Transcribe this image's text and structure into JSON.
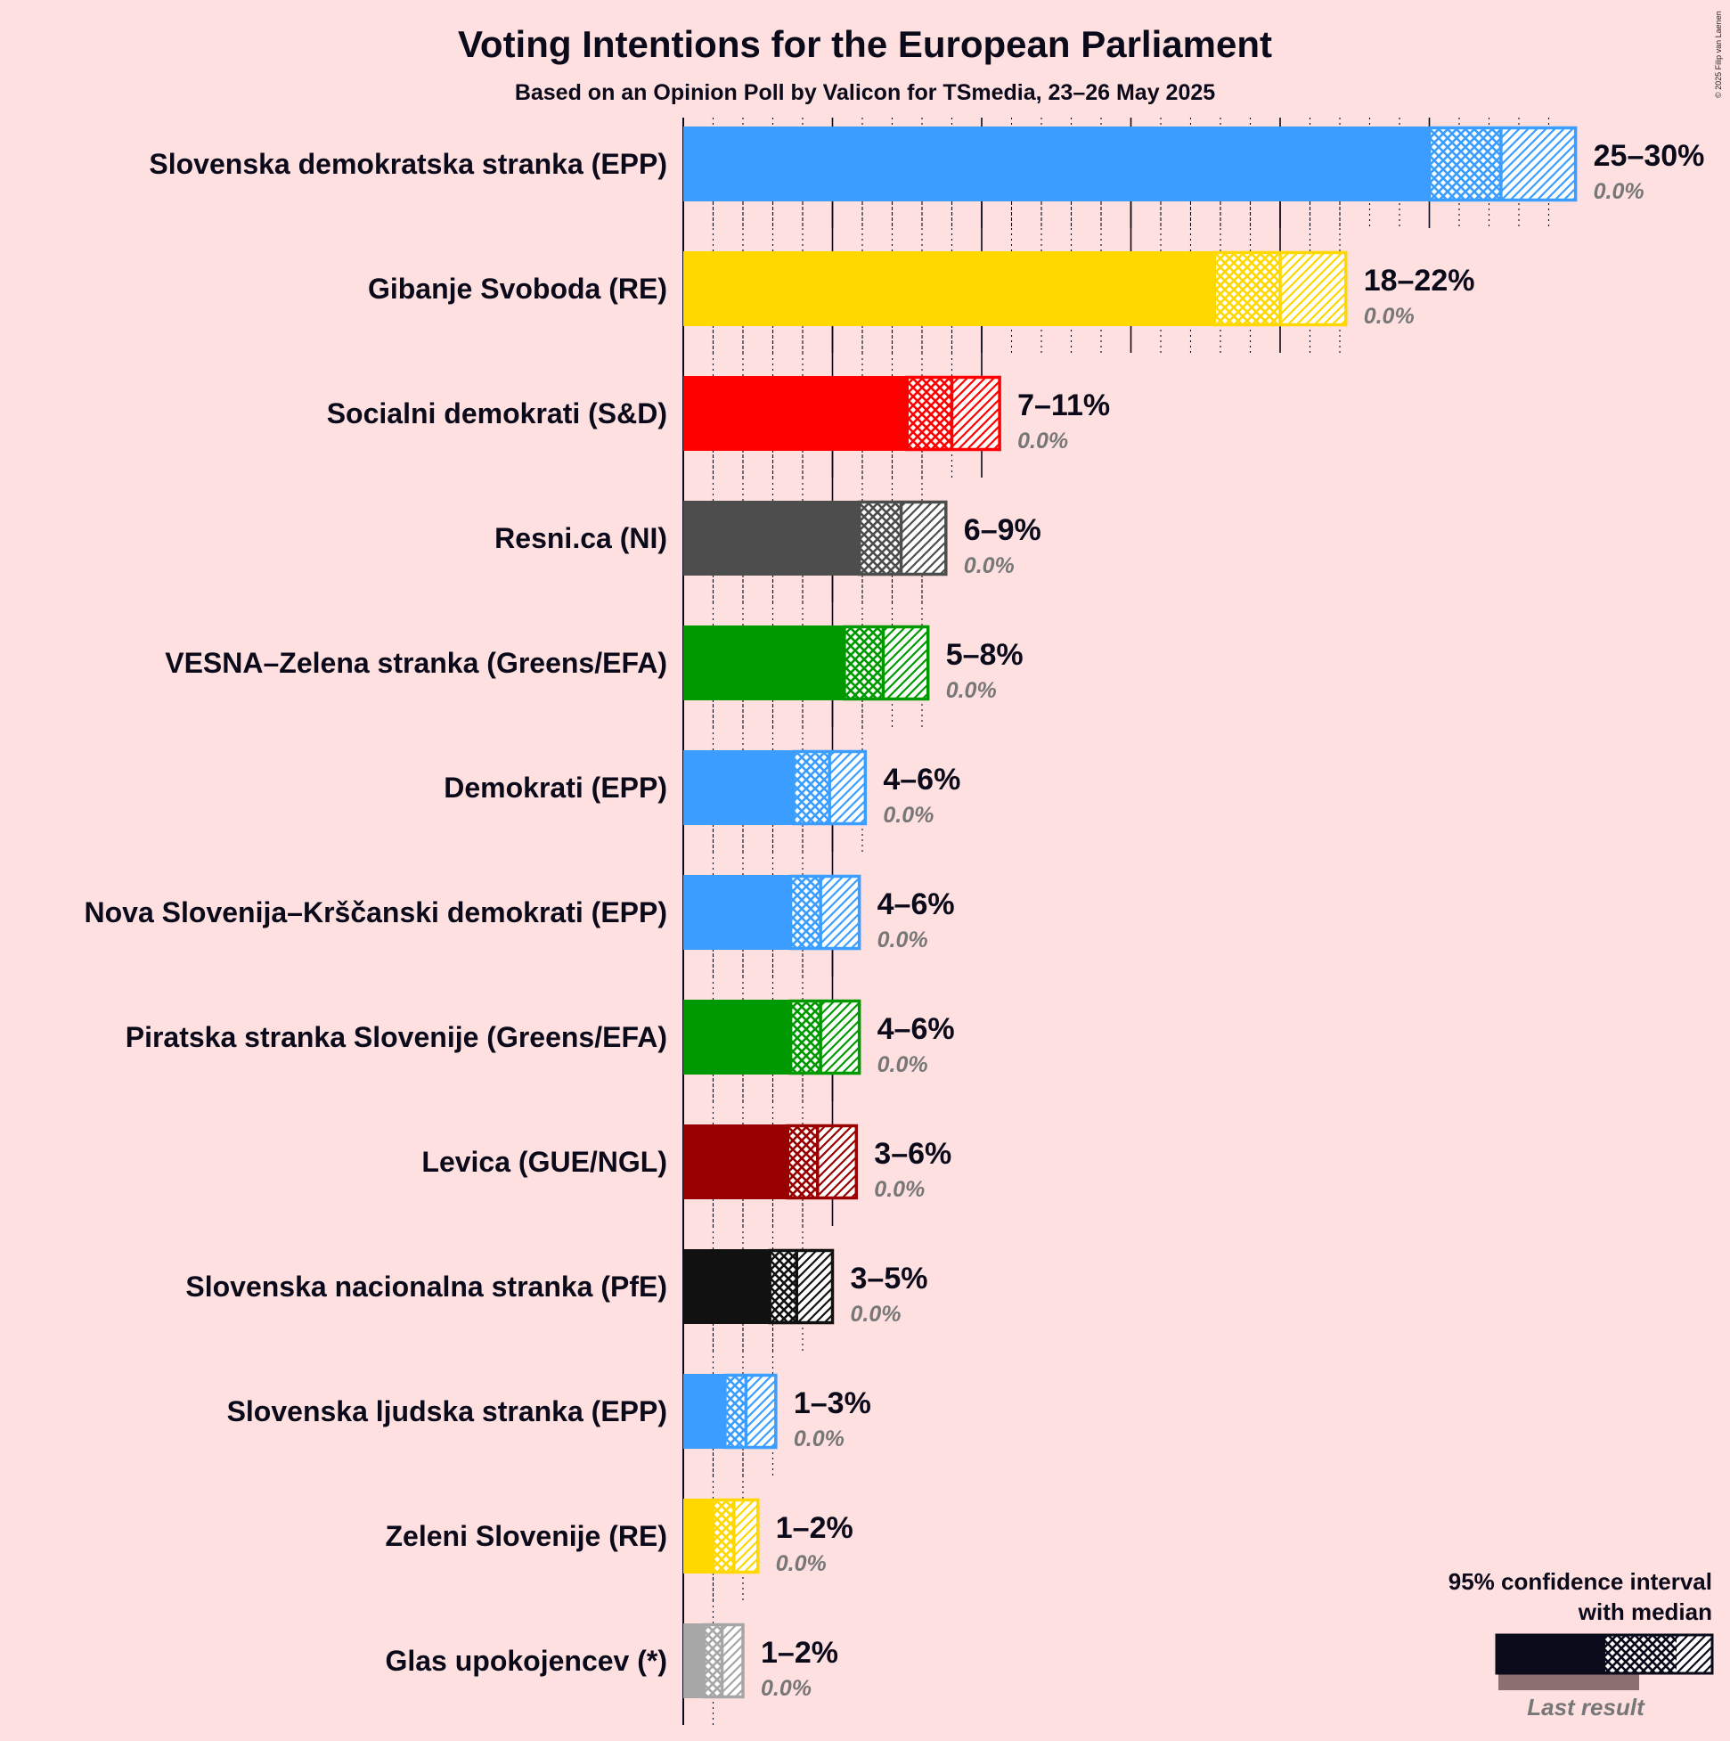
{
  "title": "Voting Intentions for the European Parliament",
  "subtitle": "Based on an Opinion Poll by Valicon for TSmedia, 23–26 May 2025",
  "copyright": "© 2025 Filip van Laenen",
  "legend": {
    "title_line1": "95% confidence interval",
    "title_line2": "with median",
    "last_result": "Last result",
    "color": "#0a0a1a"
  },
  "chart_data": {
    "type": "bar",
    "orientation": "horizontal",
    "title": "Voting Intentions for the European Parliament",
    "subtitle": "Based on an Opinion Poll by Valicon for TSmedia, 23–26 May 2025",
    "xlim": [
      0,
      30
    ],
    "grid": true,
    "legend_position": "bottom-right",
    "categories": [
      "Slovenska demokratska stranka (EPP)",
      "Gibanje Svoboda (RE)",
      "Socialni demokrati (S&D)",
      "Resni.ca (NI)",
      "VESNA–Zelena stranka (Greens/EFA)",
      "Demokrati (EPP)",
      "Nova Slovenija–Krščanski demokrati (EPP)",
      "Piratska stranka Slovenije (Greens/EFA)",
      "Levica (GUE/NGL)",
      "Slovenska nacionalna stranka (PfE)",
      "Slovenska ljudska stranka (EPP)",
      "Zeleni Slovenije (RE)",
      "Glas upokojencev (*)"
    ],
    "parties": [
      {
        "name": "Slovenska demokratska stranka (EPP)",
        "color": "#3A9DFF",
        "low": 25.0,
        "median": 27.4,
        "high": 29.9,
        "range_label": "25–30%",
        "last_result_label": "0.0%",
        "tick_max": 29
      },
      {
        "name": "Gibanje Svoboda (RE)",
        "color": "#FFD800",
        "low": 17.8,
        "median": 20.0,
        "high": 22.2,
        "range_label": "18–22%",
        "last_result_label": "0.0%",
        "tick_max": 22
      },
      {
        "name": "Socialni demokrati (S&D)",
        "color": "#FF0000",
        "low": 7.5,
        "median": 9.0,
        "high": 10.6,
        "range_label": "7–11%",
        "last_result_label": "0.0%",
        "tick_max": 10
      },
      {
        "name": "Resni.ca (NI)",
        "color": "#4D4D4D",
        "low": 5.9,
        "median": 7.3,
        "high": 8.8,
        "range_label": "6–9%",
        "last_result_label": "0.0%",
        "tick_max": 8
      },
      {
        "name": "VESNA–Zelena stranka (Greens/EFA)",
        "color": "#009900",
        "low": 5.4,
        "median": 6.7,
        "high": 8.2,
        "range_label": "5–8%",
        "last_result_label": "0.0%",
        "tick_max": 8
      },
      {
        "name": "Demokrati (EPP)",
        "color": "#3A9DFF",
        "low": 3.7,
        "median": 4.9,
        "high": 6.1,
        "range_label": "4–6%",
        "last_result_label": "0.0%",
        "tick_max": 6
      },
      {
        "name": "Nova Slovenija–Krščanski demokrati (EPP)",
        "color": "#3A9DFF",
        "low": 3.6,
        "median": 4.6,
        "high": 5.9,
        "range_label": "4–6%",
        "last_result_label": "0.0%",
        "tick_max": 5
      },
      {
        "name": "Piratska stranka Slovenije (Greens/EFA)",
        "color": "#009900",
        "low": 3.6,
        "median": 4.6,
        "high": 5.9,
        "range_label": "4–6%",
        "last_result_label": "0.0%",
        "tick_max": 5
      },
      {
        "name": "Levica (GUE/NGL)",
        "color": "#990000",
        "low": 3.5,
        "median": 4.5,
        "high": 5.8,
        "range_label": "3–6%",
        "last_result_label": "0.0%",
        "tick_max": 5
      },
      {
        "name": "Slovenska nacionalna stranka (PfE)",
        "color": "#111111",
        "low": 2.9,
        "median": 3.8,
        "high": 5.0,
        "range_label": "3–5%",
        "last_result_label": "0.0%",
        "tick_max": 4
      },
      {
        "name": "Slovenska ljudska stranka (EPP)",
        "color": "#3A9DFF",
        "low": 1.4,
        "median": 2.1,
        "high": 3.1,
        "range_label": "1–3%",
        "last_result_label": "0.0%",
        "tick_max": 3
      },
      {
        "name": "Zeleni Slovenije (RE)",
        "color": "#FFD800",
        "low": 1.0,
        "median": 1.7,
        "high": 2.5,
        "range_label": "1–2%",
        "last_result_label": "0.0%",
        "tick_max": 2
      },
      {
        "name": "Glas upokojencev (*)",
        "color": "#A6A6A6",
        "low": 0.7,
        "median": 1.3,
        "high": 2.0,
        "range_label": "1–2%",
        "last_result_label": "0.0%",
        "tick_max": 1
      }
    ]
  }
}
